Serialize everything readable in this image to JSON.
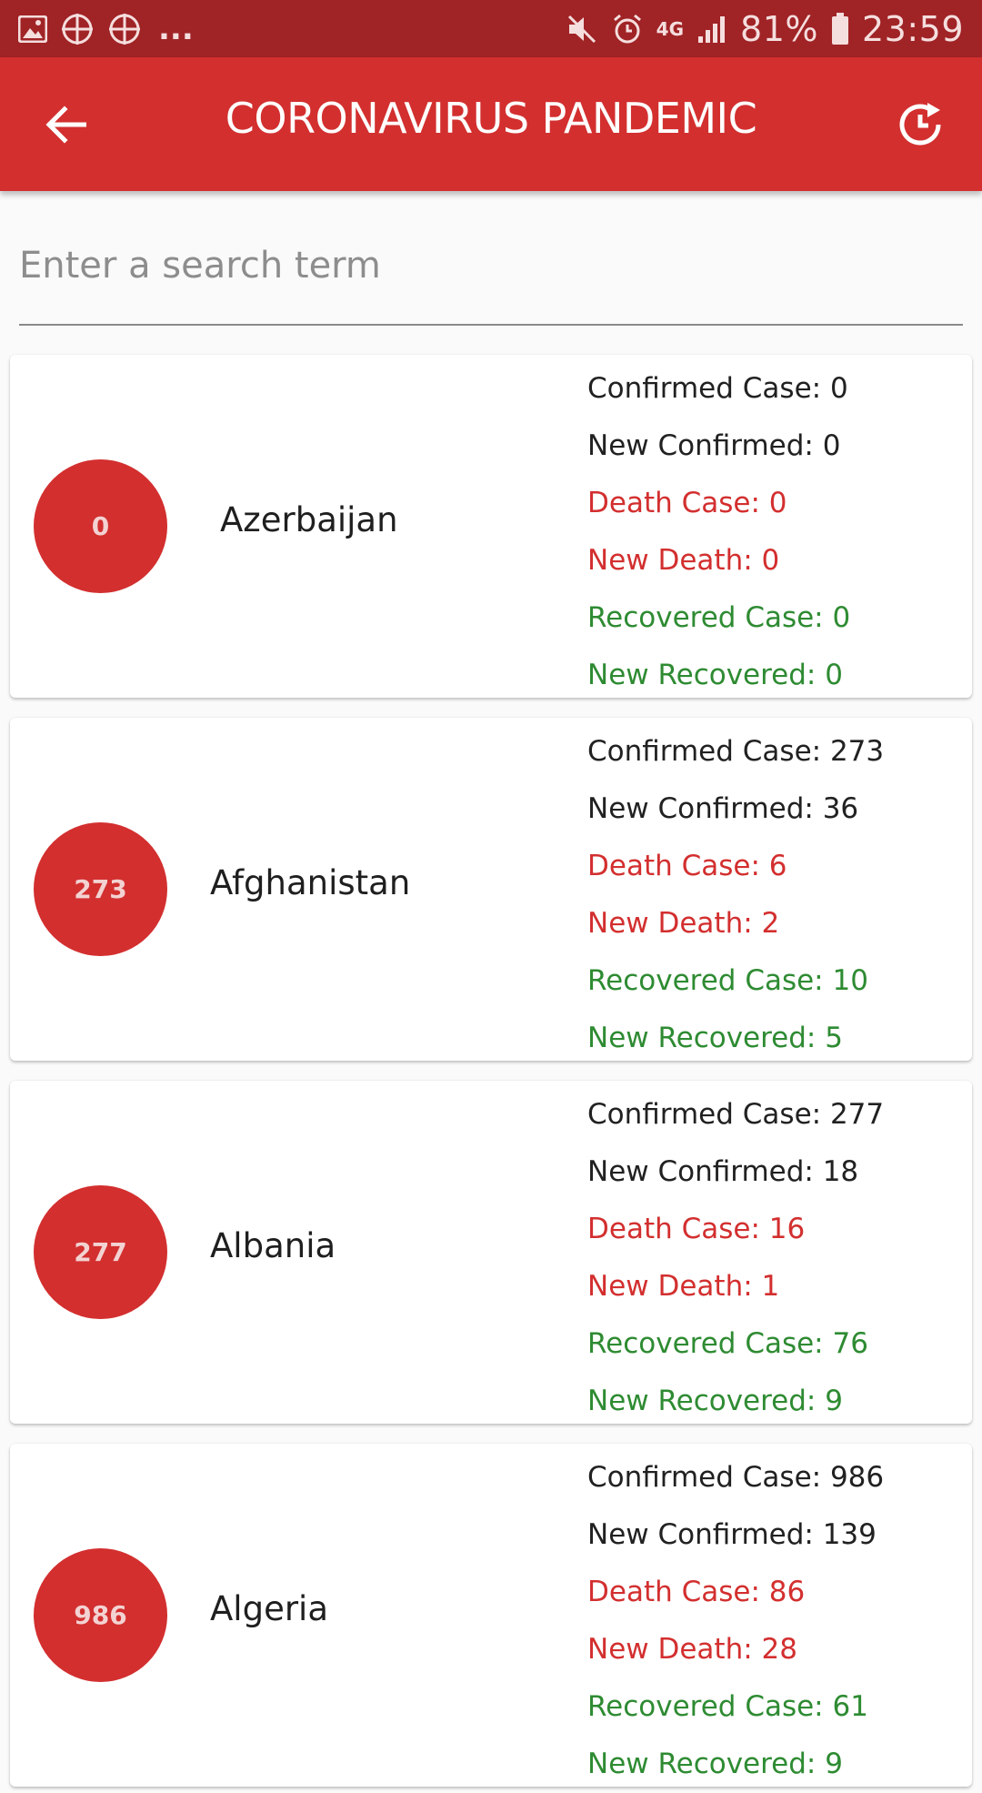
{
  "status_bar": {
    "battery": "81%",
    "time": "23:59",
    "network": "4G",
    "overflow": "..."
  },
  "header": {
    "title": "CORONAVIRUS PANDEMIC",
    "back_icon": "arrow-left-icon",
    "refresh_icon": "history-refresh-icon"
  },
  "search": {
    "placeholder": "Enter a search term",
    "value": ""
  },
  "colors": {
    "primary": "#d32f2f",
    "primary_dark": "#a02326",
    "death": "#d32f2f",
    "recovered": "#2e8b32"
  },
  "countries": [
    {
      "badge": "0",
      "name": "Azerbaijan",
      "confirmed": "Confirmed Case: 0",
      "new_confirmed": "New Confirmed: 0",
      "death": "Death Case: 0",
      "new_death": "New Death: 0",
      "recovered": "Recovered Case: 0",
      "new_recovered": "New Recovered: 0"
    },
    {
      "badge": "273",
      "name": "Afghanistan",
      "confirmed": "Confirmed Case: 273",
      "new_confirmed": "New Confirmed: 36",
      "death": "Death Case: 6",
      "new_death": "New Death: 2",
      "recovered": "Recovered Case: 10",
      "new_recovered": "New Recovered: 5"
    },
    {
      "badge": "277",
      "name": "Albania",
      "confirmed": "Confirmed Case: 277",
      "new_confirmed": "New Confirmed: 18",
      "death": "Death Case: 16",
      "new_death": "New Death: 1",
      "recovered": "Recovered Case: 76",
      "new_recovered": "New Recovered: 9"
    },
    {
      "badge": "986",
      "name": "Algeria",
      "confirmed": "Confirmed Case: 986",
      "new_confirmed": "New Confirmed: 139",
      "death": "Death Case: 86",
      "new_death": "New Death: 28",
      "recovered": "Recovered Case: 61",
      "new_recovered": "New Recovered: 9"
    }
  ]
}
